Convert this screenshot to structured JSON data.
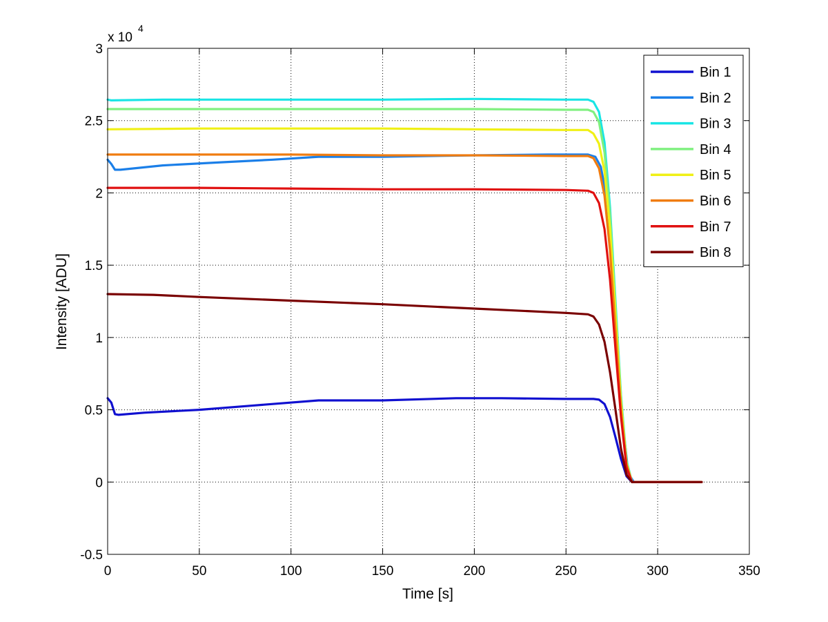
{
  "chart_data": {
    "type": "line",
    "title": "",
    "xlabel": "Time [s]",
    "ylabel": "Intensity [ADU]",
    "xlim": [
      0,
      350
    ],
    "ylim": [
      -0.5,
      3
    ],
    "y_multiplier": "x 10",
    "y_exponent": "4",
    "xticks": [
      0,
      50,
      100,
      150,
      200,
      250,
      300,
      350
    ],
    "xtick_labels": [
      "0",
      "50",
      "100",
      "150",
      "200",
      "250",
      "300",
      "350"
    ],
    "yticks": [
      -0.5,
      0,
      0.5,
      1,
      1.5,
      2,
      2.5,
      3
    ],
    "ytick_labels": [
      "-0.5",
      "0",
      "0.5",
      "1",
      "1.5",
      "2",
      "2.5",
      "3"
    ],
    "grid": true,
    "legend_position": "top-right",
    "series": [
      {
        "name": "Bin 1",
        "color": "#1010d0",
        "points": [
          [
            0,
            0.58
          ],
          [
            2,
            0.55
          ],
          [
            4,
            0.47
          ],
          [
            6,
            0.465
          ],
          [
            20,
            0.48
          ],
          [
            50,
            0.5
          ],
          [
            80,
            0.53
          ],
          [
            115,
            0.565
          ],
          [
            150,
            0.565
          ],
          [
            190,
            0.58
          ],
          [
            215,
            0.58
          ],
          [
            250,
            0.575
          ],
          [
            265,
            0.575
          ],
          [
            268,
            0.57
          ],
          [
            271,
            0.54
          ],
          [
            274,
            0.45
          ],
          [
            277,
            0.31
          ],
          [
            280,
            0.16
          ],
          [
            283,
            0.04
          ],
          [
            286,
            0.0
          ],
          [
            300,
            0.0
          ],
          [
            324,
            0.0
          ]
        ]
      },
      {
        "name": "Bin 2",
        "color": "#1b7fe8",
        "points": [
          [
            0,
            2.23
          ],
          [
            2,
            2.2
          ],
          [
            4,
            2.16
          ],
          [
            7,
            2.16
          ],
          [
            30,
            2.19
          ],
          [
            60,
            2.21
          ],
          [
            90,
            2.23
          ],
          [
            115,
            2.25
          ],
          [
            150,
            2.25
          ],
          [
            200,
            2.26
          ],
          [
            240,
            2.265
          ],
          [
            262,
            2.265
          ],
          [
            266,
            2.25
          ],
          [
            269,
            2.18
          ],
          [
            272,
            1.98
          ],
          [
            275,
            1.55
          ],
          [
            278,
            0.95
          ],
          [
            281,
            0.4
          ],
          [
            284,
            0.06
          ],
          [
            287,
            0.0
          ],
          [
            300,
            0.0
          ],
          [
            324,
            0.0
          ]
        ]
      },
      {
        "name": "Bin 3",
        "color": "#19e5e5",
        "points": [
          [
            0,
            2.645
          ],
          [
            2,
            2.64
          ],
          [
            30,
            2.645
          ],
          [
            100,
            2.645
          ],
          [
            150,
            2.645
          ],
          [
            200,
            2.65
          ],
          [
            250,
            2.645
          ],
          [
            262,
            2.645
          ],
          [
            265,
            2.63
          ],
          [
            268,
            2.56
          ],
          [
            271,
            2.35
          ],
          [
            274,
            1.9
          ],
          [
            277,
            1.25
          ],
          [
            280,
            0.6
          ],
          [
            283,
            0.15
          ],
          [
            286,
            0.0
          ],
          [
            300,
            0.0
          ],
          [
            324,
            0.0
          ]
        ]
      },
      {
        "name": "Bin 4",
        "color": "#80f080",
        "points": [
          [
            0,
            2.58
          ],
          [
            50,
            2.58
          ],
          [
            100,
            2.58
          ],
          [
            150,
            2.58
          ],
          [
            200,
            2.58
          ],
          [
            250,
            2.575
          ],
          [
            262,
            2.575
          ],
          [
            265,
            2.56
          ],
          [
            268,
            2.49
          ],
          [
            271,
            2.28
          ],
          [
            274,
            1.85
          ],
          [
            277,
            1.22
          ],
          [
            280,
            0.58
          ],
          [
            283,
            0.14
          ],
          [
            286,
            0.0
          ],
          [
            300,
            0.0
          ],
          [
            324,
            0.0
          ]
        ]
      },
      {
        "name": "Bin 5",
        "color": "#f0f015",
        "points": [
          [
            0,
            2.44
          ],
          [
            50,
            2.445
          ],
          [
            100,
            2.445
          ],
          [
            150,
            2.445
          ],
          [
            200,
            2.44
          ],
          [
            250,
            2.435
          ],
          [
            262,
            2.435
          ],
          [
            265,
            2.41
          ],
          [
            268,
            2.34
          ],
          [
            271,
            2.15
          ],
          [
            274,
            1.75
          ],
          [
            277,
            1.15
          ],
          [
            280,
            0.55
          ],
          [
            283,
            0.13
          ],
          [
            286,
            0.0
          ],
          [
            300,
            0.0
          ],
          [
            324,
            0.0
          ]
        ]
      },
      {
        "name": "Bin 6",
        "color": "#f07c10",
        "points": [
          [
            0,
            2.265
          ],
          [
            50,
            2.265
          ],
          [
            100,
            2.265
          ],
          [
            150,
            2.26
          ],
          [
            200,
            2.26
          ],
          [
            250,
            2.255
          ],
          [
            262,
            2.255
          ],
          [
            265,
            2.24
          ],
          [
            268,
            2.17
          ],
          [
            271,
            1.98
          ],
          [
            274,
            1.6
          ],
          [
            277,
            1.05
          ],
          [
            280,
            0.5
          ],
          [
            283,
            0.12
          ],
          [
            286,
            0.0
          ],
          [
            300,
            0.0
          ],
          [
            324,
            0.0
          ]
        ]
      },
      {
        "name": "Bin 7",
        "color": "#e01010",
        "points": [
          [
            0,
            2.035
          ],
          [
            50,
            2.035
          ],
          [
            100,
            2.03
          ],
          [
            150,
            2.025
          ],
          [
            200,
            2.025
          ],
          [
            250,
            2.02
          ],
          [
            262,
            2.015
          ],
          [
            265,
            2.0
          ],
          [
            268,
            1.93
          ],
          [
            271,
            1.75
          ],
          [
            274,
            1.4
          ],
          [
            277,
            0.92
          ],
          [
            280,
            0.45
          ],
          [
            283,
            0.1
          ],
          [
            286,
            0.0
          ],
          [
            300,
            0.0
          ],
          [
            324,
            0.0
          ]
        ]
      },
      {
        "name": "Bin 8",
        "color": "#7a0000",
        "points": [
          [
            0,
            1.3
          ],
          [
            25,
            1.295
          ],
          [
            50,
            1.28
          ],
          [
            100,
            1.255
          ],
          [
            150,
            1.23
          ],
          [
            200,
            1.2
          ],
          [
            250,
            1.17
          ],
          [
            262,
            1.16
          ],
          [
            265,
            1.145
          ],
          [
            268,
            1.09
          ],
          [
            271,
            0.97
          ],
          [
            274,
            0.76
          ],
          [
            277,
            0.5
          ],
          [
            280,
            0.23
          ],
          [
            283,
            0.05
          ],
          [
            286,
            0.0
          ],
          [
            300,
            0.0
          ],
          [
            324,
            0.0
          ]
        ]
      }
    ]
  }
}
